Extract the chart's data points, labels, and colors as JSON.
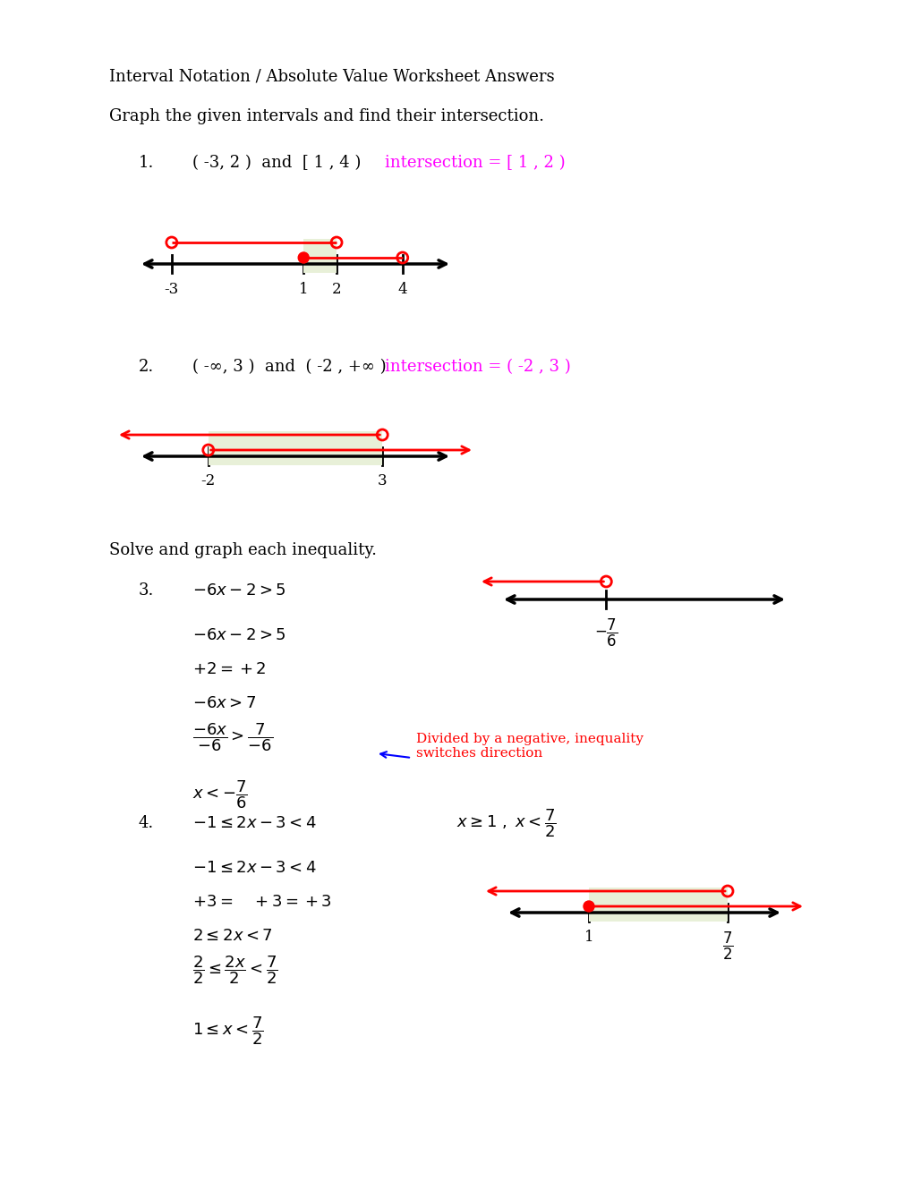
{
  "title": "Interval Notation / Absolute Value Worksheet Answers",
  "subtitle": "Graph the given intervals and find their intersection.",
  "subtitle2": "Solve and graph each inequality.",
  "bg_color": "#ffffff",
  "magenta": "#ff00ff",
  "red": "#ff0000",
  "blue": "#0000ff",
  "black": "#000000",
  "green_fill": "#e8f0d8"
}
